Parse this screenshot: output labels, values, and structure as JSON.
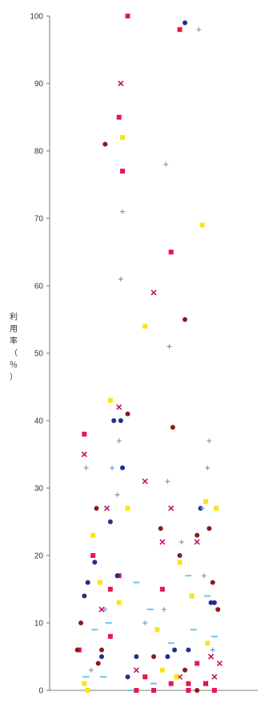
{
  "chart_data": {
    "type": "scatter",
    "title": "",
    "xlabel": "",
    "ylabel": "利用率（％）",
    "ylim": [
      0,
      100
    ],
    "yticks": [
      0,
      10,
      20,
      30,
      40,
      50,
      60,
      70,
      80,
      90,
      100
    ],
    "xlim": [
      0,
      12
    ],
    "grid": false,
    "legend": "none",
    "series": [
      {
        "color": "#e8174f",
        "marker": "square",
        "points": [
          [
            2,
            38
          ],
          [
            4.5,
            100
          ],
          [
            7.5,
            98
          ],
          [
            4,
            85
          ],
          [
            4.2,
            77
          ],
          [
            7,
            65
          ],
          [
            4,
            17
          ],
          [
            3.5,
            15
          ],
          [
            5,
            0
          ],
          [
            6,
            0
          ],
          [
            8,
            0
          ],
          [
            2.5,
            20
          ],
          [
            1.7,
            6
          ],
          [
            3.5,
            8
          ],
          [
            6.5,
            15
          ],
          [
            9.5,
            0
          ],
          [
            5.5,
            2
          ],
          [
            7,
            1
          ],
          [
            8,
            1
          ],
          [
            9,
            1
          ],
          [
            8.5,
            4
          ]
        ]
      },
      {
        "color": "#c2185b",
        "marker": "x",
        "points": [
          [
            2,
            35
          ],
          [
            3,
            12
          ],
          [
            3.3,
            27
          ],
          [
            4.1,
            90
          ],
          [
            4,
            42
          ],
          [
            6,
            59
          ],
          [
            5.5,
            31
          ],
          [
            7,
            27
          ],
          [
            6.5,
            22
          ],
          [
            5,
            3
          ],
          [
            7.5,
            2
          ],
          [
            8.5,
            22
          ],
          [
            9,
            1
          ],
          [
            9.3,
            5
          ],
          [
            9.5,
            2
          ],
          [
            9.8,
            4
          ]
        ]
      },
      {
        "color": "#8b1a1a",
        "marker": "circle",
        "points": [
          [
            1.8,
            10
          ],
          [
            2.7,
            27
          ],
          [
            3.2,
            81
          ],
          [
            4.5,
            41
          ],
          [
            7.8,
            55
          ],
          [
            6.4,
            24
          ],
          [
            7.1,
            39
          ],
          [
            8.5,
            23
          ],
          [
            7.5,
            20
          ],
          [
            9.7,
            12
          ],
          [
            9.4,
            16
          ],
          [
            2.8,
            4
          ],
          [
            3,
            6
          ],
          [
            7.8,
            3
          ],
          [
            8.5,
            0
          ],
          [
            6,
            5
          ],
          [
            9.2,
            24
          ],
          [
            1.6,
            6
          ]
        ]
      },
      {
        "color": "#1f2f8f",
        "marker": "circle",
        "points": [
          [
            3.7,
            40
          ],
          [
            4.1,
            40
          ],
          [
            7.8,
            99
          ],
          [
            4.2,
            33
          ],
          [
            2.6,
            19
          ],
          [
            2.2,
            16
          ],
          [
            2,
            14
          ],
          [
            3.5,
            25
          ],
          [
            8.7,
            27
          ],
          [
            9.3,
            13
          ],
          [
            9.5,
            13
          ],
          [
            3.9,
            17
          ],
          [
            7.2,
            6
          ],
          [
            8,
            6
          ],
          [
            3,
            5
          ],
          [
            4.5,
            2
          ],
          [
            5,
            5
          ],
          [
            6.8,
            5
          ]
        ]
      },
      {
        "color": "#f6e61c",
        "marker": "square",
        "points": [
          [
            4.2,
            82
          ],
          [
            5.5,
            54
          ],
          [
            8.8,
            69
          ],
          [
            4.5,
            27
          ],
          [
            2.5,
            23
          ],
          [
            9.6,
            27
          ],
          [
            9,
            28
          ],
          [
            3.5,
            43
          ],
          [
            2.9,
            16
          ],
          [
            6.2,
            9
          ],
          [
            7.5,
            19
          ],
          [
            4,
            13
          ],
          [
            2,
            1
          ],
          [
            2.2,
            0
          ],
          [
            6.5,
            3
          ],
          [
            7.3,
            2
          ],
          [
            8.2,
            14
          ],
          [
            9.1,
            7
          ]
        ]
      },
      {
        "color": "#7a9ac9",
        "marker": "cross",
        "points": [
          [
            4.2,
            71
          ],
          [
            4.1,
            61
          ],
          [
            6.7,
            78
          ],
          [
            6.9,
            51
          ],
          [
            8.6,
            98
          ],
          [
            9.2,
            37
          ],
          [
            9.1,
            33
          ],
          [
            4,
            37
          ],
          [
            3.6,
            33
          ],
          [
            3.9,
            29
          ],
          [
            8.8,
            27
          ],
          [
            6.8,
            31
          ],
          [
            7.6,
            22
          ],
          [
            6.6,
            12
          ],
          [
            9.4,
            6
          ],
          [
            3.2,
            12
          ],
          [
            5.5,
            10
          ],
          [
            2.4,
            3
          ],
          [
            8.9,
            17
          ],
          [
            2.1,
            33
          ]
        ]
      },
      {
        "color": "#5ec3e8",
        "marker": "dash",
        "points": [
          [
            2.1,
            2
          ],
          [
            3.4,
            10
          ],
          [
            5,
            16
          ],
          [
            8,
            17
          ],
          [
            9.5,
            8
          ],
          [
            6,
            1
          ],
          [
            7,
            7
          ],
          [
            3.1,
            2
          ],
          [
            4.7,
            0
          ],
          [
            5.8,
            12
          ],
          [
            9.1,
            14
          ],
          [
            8.3,
            9
          ],
          [
            2.6,
            9
          ]
        ]
      }
    ]
  }
}
